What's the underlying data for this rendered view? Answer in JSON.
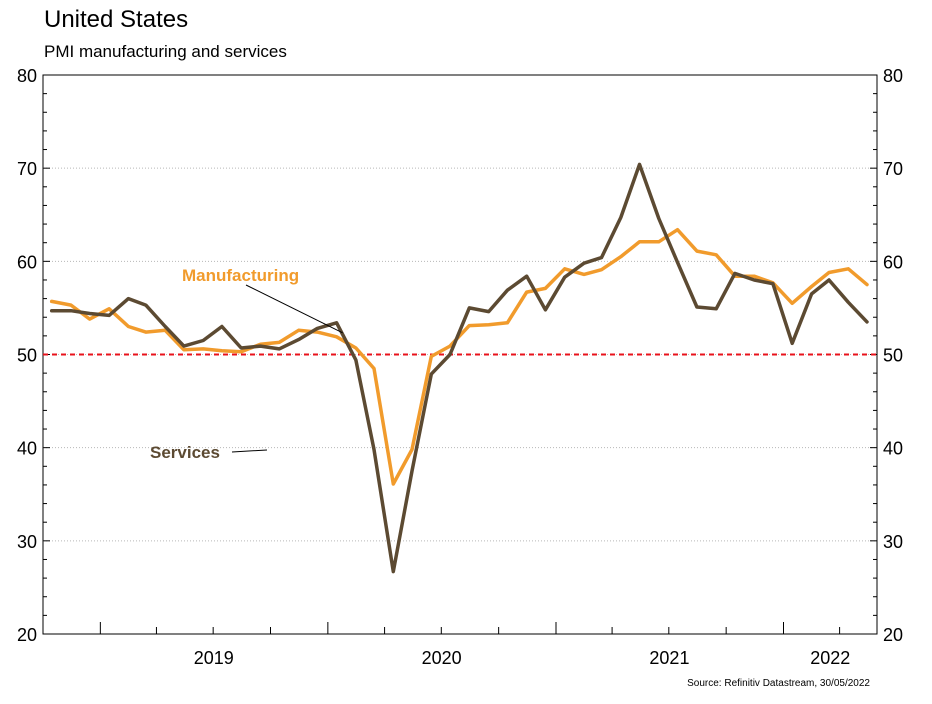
{
  "title": "United States",
  "subtitle": "PMI manufacturing and services",
  "source": "Source: Refinitiv Datastream, 30/05/2022",
  "chart_data": {
    "type": "line",
    "title": "United States",
    "subtitle": "PMI manufacturing and services",
    "ylim": [
      20,
      80
    ],
    "yticks": [
      20,
      30,
      40,
      50,
      60,
      70,
      80
    ],
    "xlim": [
      "2018-10",
      "2022-05"
    ],
    "year_labels": [
      "2019",
      "2020",
      "2021",
      "2022"
    ],
    "reference_line": {
      "value": 50,
      "color": "#e8121b",
      "style": "dashed"
    },
    "grid": true,
    "x": [
      "2018-10",
      "2018-11",
      "2018-12",
      "2019-01",
      "2019-02",
      "2019-03",
      "2019-04",
      "2019-05",
      "2019-06",
      "2019-07",
      "2019-08",
      "2019-09",
      "2019-10",
      "2019-11",
      "2019-12",
      "2020-01",
      "2020-02",
      "2020-03",
      "2020-04",
      "2020-05",
      "2020-06",
      "2020-07",
      "2020-08",
      "2020-09",
      "2020-10",
      "2020-11",
      "2020-12",
      "2021-01",
      "2021-02",
      "2021-03",
      "2021-04",
      "2021-05",
      "2021-06",
      "2021-07",
      "2021-08",
      "2021-09",
      "2021-10",
      "2021-11",
      "2021-12",
      "2022-01",
      "2022-02",
      "2022-03",
      "2022-04",
      "2022-05"
    ],
    "series": [
      {
        "name": "Manufacturing",
        "color": "#f19b2c",
        "values": [
          55.7,
          55.3,
          53.8,
          54.9,
          53.0,
          52.4,
          52.6,
          50.5,
          50.6,
          50.4,
          50.3,
          51.1,
          51.3,
          52.6,
          52.4,
          51.9,
          50.7,
          48.5,
          36.1,
          39.8,
          49.8,
          50.9,
          53.1,
          53.2,
          53.4,
          56.7,
          57.1,
          59.2,
          58.6,
          59.1,
          60.5,
          62.1,
          62.1,
          63.4,
          61.1,
          60.7,
          58.4,
          58.4,
          57.7,
          55.5,
          57.3,
          58.8,
          59.2,
          57.5
        ]
      },
      {
        "name": "Services",
        "color": "#5c4a32",
        "values": [
          54.7,
          54.7,
          54.4,
          54.2,
          56.0,
          55.3,
          53.0,
          50.9,
          51.5,
          53.0,
          50.7,
          50.9,
          50.6,
          51.6,
          52.8,
          53.4,
          49.4,
          39.8,
          26.7,
          37.5,
          47.9,
          50.0,
          55.0,
          54.6,
          56.9,
          58.4,
          54.8,
          58.3,
          59.8,
          60.4,
          64.7,
          70.4,
          64.6,
          59.9,
          55.1,
          54.9,
          58.7,
          58.0,
          57.6,
          51.2,
          56.5,
          58.0,
          55.6,
          53.5
        ]
      }
    ]
  }
}
